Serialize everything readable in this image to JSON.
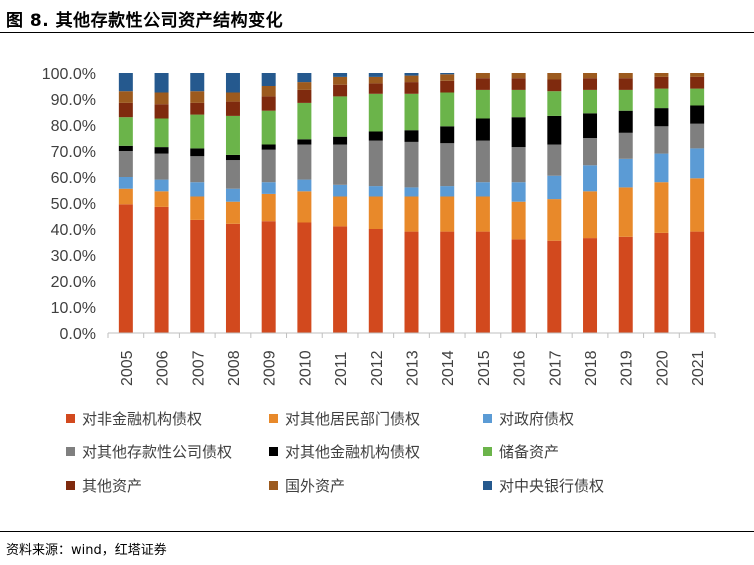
{
  "figure": {
    "title": "图 8. 其他存款性公司资产结构变化",
    "source": "资料来源：wind，红塔证券"
  },
  "chart_data": {
    "type": "bar",
    "stacked": true,
    "percent": true,
    "ylim": [
      0,
      100
    ],
    "yticks": [
      "0.0%",
      "10.0%",
      "20.0%",
      "30.0%",
      "40.0%",
      "50.0%",
      "60.0%",
      "70.0%",
      "80.0%",
      "90.0%",
      "100.0%"
    ],
    "categories": [
      "2005",
      "2006",
      "2007",
      "2008",
      "2009",
      "2010",
      "2011",
      "2012",
      "2013",
      "2014",
      "2015",
      "2016",
      "2017",
      "2018",
      "2019",
      "2020",
      "2021"
    ],
    "series": [
      {
        "name": "对非金融机构债权",
        "color": "#D2491E",
        "values": [
          49.5,
          48.5,
          43.5,
          42,
          43,
          42.5,
          41,
          40,
          39,
          39,
          39,
          36,
          35.5,
          36.5,
          37,
          38.5,
          39
        ]
      },
      {
        "name": "对其他居民部门债权",
        "color": "#E8892A",
        "values": [
          6,
          6,
          9,
          8.5,
          10.5,
          12,
          11.5,
          12.5,
          13.5,
          13.5,
          13.5,
          14.5,
          16,
          18,
          19,
          19.5,
          20.5
        ]
      },
      {
        "name": "对政府债权",
        "color": "#5B9BD5",
        "values": [
          4.5,
          4.5,
          5.5,
          5,
          4.5,
          4.5,
          4.5,
          4,
          3.5,
          4,
          5.5,
          7.5,
          9,
          10,
          11,
          11,
          11.5
        ]
      },
      {
        "name": "对其他存款性公司债权",
        "color": "#7F7F7F",
        "values": [
          10,
          10,
          10,
          11,
          12.5,
          13.5,
          15.5,
          17.5,
          17.5,
          16.5,
          16,
          13.5,
          12,
          10.5,
          10,
          10.5,
          9.5
        ]
      },
      {
        "name": "对其他金融机构债权",
        "color": "#000000",
        "values": [
          2,
          2.5,
          3,
          2,
          2,
          2,
          3,
          3.5,
          4.5,
          6.5,
          8.5,
          11.5,
          11,
          9.5,
          8.5,
          7,
          7
        ]
      },
      {
        "name": "储备资产",
        "color": "#6BB44A",
        "values": [
          11,
          11,
          13,
          15,
          13,
          14,
          15.5,
          14.5,
          14,
          13,
          11,
          10.5,
          9.5,
          9,
          8,
          7.5,
          6.5
        ]
      },
      {
        "name": "其他资产",
        "color": "#7F2A0E",
        "values": [
          5.5,
          5.5,
          4.5,
          5.5,
          5.5,
          5,
          4.5,
          4,
          4.5,
          4.5,
          4.5,
          4.5,
          4.5,
          4.5,
          4.5,
          4.5,
          4.5
        ]
      },
      {
        "name": "国外资产",
        "color": "#9C5A1E",
        "values": [
          4.5,
          4.5,
          4.5,
          3.5,
          4,
          3,
          3,
          2.5,
          2.5,
          2.5,
          2,
          2,
          2.5,
          2,
          2,
          1.5,
          1.5
        ]
      },
      {
        "name": "对中央银行债权",
        "color": "#25598E",
        "values": [
          7,
          7.5,
          7,
          7.5,
          5,
          3.5,
          1.5,
          1.5,
          1,
          0.5,
          0,
          0,
          0,
          0,
          0,
          0,
          0
        ]
      }
    ],
    "legend_position": "bottom",
    "grid": false,
    "xlabel": "",
    "ylabel": ""
  }
}
